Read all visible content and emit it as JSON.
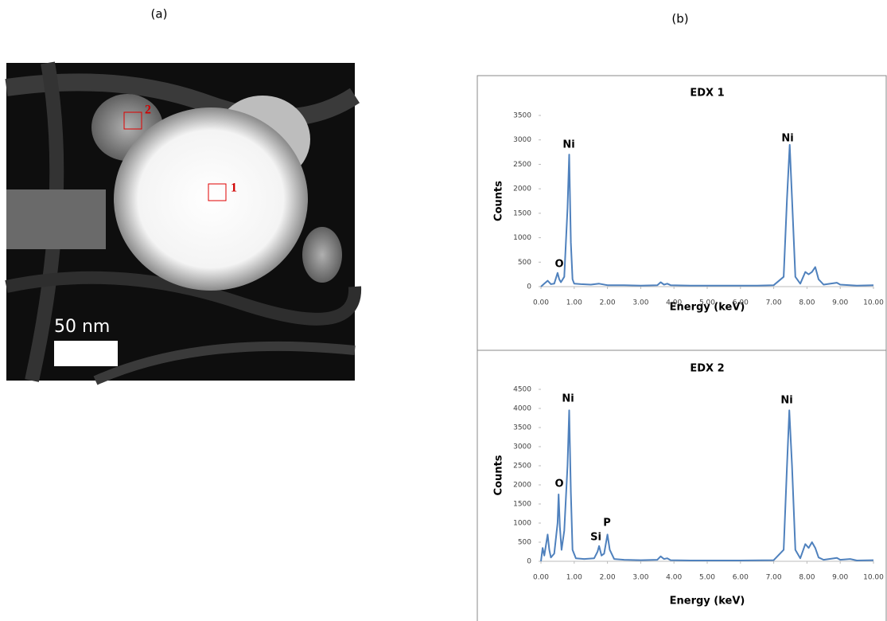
{
  "panel_labels": [
    "(a)",
    "(b)"
  ],
  "image": {
    "scale_bar_label": "50 nm",
    "regions": [
      "1",
      "2"
    ]
  },
  "chart_data": [
    {
      "type": "line",
      "title": "EDX 1",
      "x_label": "Energy (keV)",
      "y_label": "Counts",
      "x": [
        0,
        0.1,
        0.2,
        0.3,
        0.4,
        0.5,
        0.55,
        0.6,
        0.7,
        0.8,
        0.85,
        0.9,
        0.95,
        1.0,
        1.2,
        1.5,
        1.75,
        2.0,
        2.5,
        3.0,
        3.5,
        3.6,
        3.7,
        3.8,
        3.9,
        4.5,
        5.0,
        6.0,
        6.5,
        7.0,
        7.3,
        7.4,
        7.48,
        7.55,
        7.65,
        7.8,
        7.95,
        8.05,
        8.15,
        8.25,
        8.35,
        8.5,
        8.9,
        9.0,
        9.5,
        10
      ],
      "series": [
        {
          "color": "#4f81bd",
          "values": [
            0,
            60,
            120,
            50,
            60,
            280,
            150,
            90,
            200,
            1600,
            2700,
            900,
            150,
            60,
            50,
            40,
            60,
            30,
            30,
            20,
            30,
            90,
            40,
            60,
            30,
            20,
            20,
            20,
            20,
            30,
            200,
            1800,
            2900,
            1800,
            200,
            60,
            300,
            250,
            300,
            400,
            150,
            40,
            80,
            40,
            20,
            30
          ]
        }
      ],
      "annotations": [
        "O",
        "Ni",
        "Ni"
      ],
      "xlim": [
        0,
        10
      ],
      "ylim": [
        0,
        3500
      ],
      "xticks": [
        {
          "value": 0,
          "label": "0.00"
        },
        {
          "value": 1,
          "label": "1.00"
        },
        {
          "value": 2,
          "label": "2.00"
        },
        {
          "value": 3,
          "label": "3.00"
        },
        {
          "value": 4,
          "label": "4.00"
        },
        {
          "value": 5,
          "label": "5.00"
        },
        {
          "value": 6,
          "label": "6.00"
        },
        {
          "value": 7,
          "label": "7.00"
        },
        {
          "value": 8,
          "label": "8.00"
        },
        {
          "value": 9,
          "label": "9.00"
        },
        {
          "value": 10,
          "label": "10.00"
        }
      ],
      "yticks": [
        0,
        500,
        1000,
        1500,
        2000,
        2500,
        3000,
        3500
      ]
    },
    {
      "type": "line",
      "title": "EDX 2",
      "x_label": "Energy (keV)",
      "y_label": "Counts",
      "x": [
        0,
        0.05,
        0.1,
        0.2,
        0.25,
        0.3,
        0.4,
        0.5,
        0.53,
        0.57,
        0.62,
        0.7,
        0.8,
        0.85,
        0.9,
        0.95,
        1.05,
        1.3,
        1.6,
        1.7,
        1.75,
        1.82,
        1.9,
        2.0,
        2.07,
        2.2,
        2.5,
        3.0,
        3.5,
        3.6,
        3.7,
        3.8,
        3.9,
        4.5,
        5.0,
        6.0,
        7.0,
        7.3,
        7.4,
        7.47,
        7.55,
        7.65,
        7.8,
        7.95,
        8.05,
        8.15,
        8.25,
        8.35,
        8.5,
        8.9,
        9.0,
        9.3,
        9.5,
        10
      ],
      "series": [
        {
          "color": "#4f81bd",
          "values": [
            0,
            350,
            150,
            700,
            300,
            100,
            200,
            1000,
            1750,
            900,
            300,
            800,
            2500,
            3950,
            1800,
            300,
            80,
            60,
            80,
            250,
            400,
            150,
            200,
            700,
            300,
            60,
            40,
            30,
            40,
            130,
            60,
            80,
            30,
            20,
            20,
            20,
            30,
            300,
            2500,
            3950,
            2500,
            300,
            80,
            450,
            350,
            500,
            350,
            100,
            40,
            90,
            40,
            60,
            20,
            30
          ]
        }
      ],
      "annotations": [
        "O",
        "Ni",
        "Ni",
        "Si",
        "P"
      ],
      "xlim": [
        0,
        10
      ],
      "ylim": [
        0,
        4500
      ],
      "xticks": [
        {
          "value": 0,
          "label": "0.00"
        },
        {
          "value": 1,
          "label": "1.00"
        },
        {
          "value": 2,
          "label": "2.00"
        },
        {
          "value": 3,
          "label": "3.00"
        },
        {
          "value": 4,
          "label": "4.00"
        },
        {
          "value": 5,
          "label": "5.00"
        },
        {
          "value": 6,
          "label": "6.00"
        },
        {
          "value": 7,
          "label": "7.00"
        },
        {
          "value": 8,
          "label": "8.00"
        },
        {
          "value": 9,
          "label": "9.00"
        },
        {
          "value": 10,
          "label": "10.00"
        }
      ],
      "yticks": [
        0,
        500,
        1000,
        1500,
        2000,
        2500,
        3000,
        3500,
        4000,
        4500
      ]
    }
  ]
}
